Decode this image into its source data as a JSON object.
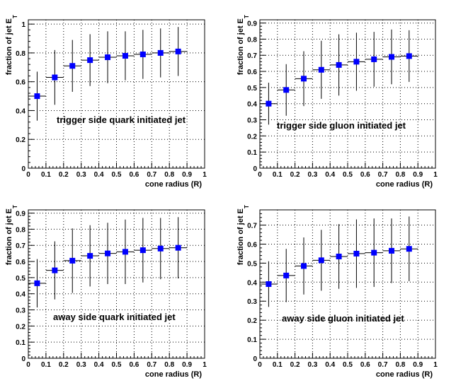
{
  "colors": {
    "marker": "#0000ff",
    "axis": "#000000",
    "grid": "#000000",
    "background": "#ffffff"
  },
  "chart_data": [
    {
      "type": "scatter",
      "annotation": "trigger side quark initiated jet",
      "xlabel": "cone radius (R)",
      "ylabel": "fraction of jet E",
      "ylabel_sub": "T",
      "xlim": [
        0,
        1
      ],
      "ylim": [
        0,
        1.03
      ],
      "xticks": [
        0,
        0.1,
        0.2,
        0.3,
        0.4,
        0.5,
        0.6,
        0.7,
        0.8,
        0.9,
        1
      ],
      "xticklabels": [
        "0",
        "0.1",
        "0.2",
        "0.3",
        "0.4",
        "0.5",
        "0.6",
        "0.7",
        "0.8",
        "0.9",
        "1"
      ],
      "yticks": [
        0,
        0.2,
        0.4,
        0.6,
        0.8,
        1
      ],
      "yticklabels": [
        "0",
        "0.2",
        "0.4",
        "0.6",
        "0.8",
        "1"
      ],
      "grid": true,
      "x": [
        0.05,
        0.15,
        0.25,
        0.35,
        0.45,
        0.55,
        0.65,
        0.75,
        0.85
      ],
      "y": [
        0.5,
        0.63,
        0.71,
        0.75,
        0.77,
        0.78,
        0.79,
        0.8,
        0.81
      ],
      "yerr": [
        0.17,
        0.19,
        0.18,
        0.18,
        0.18,
        0.17,
        0.17,
        0.17,
        0.17
      ]
    },
    {
      "type": "scatter",
      "annotation": "trigger side gluon initiated jet",
      "xlabel": "cone radius (R)",
      "ylabel": "fraction of jet E",
      "ylabel_sub": "T",
      "xlim": [
        0,
        1
      ],
      "ylim": [
        0,
        0.92
      ],
      "xticks": [
        0,
        0.1,
        0.2,
        0.3,
        0.4,
        0.5,
        0.6,
        0.7,
        0.8,
        0.9,
        1
      ],
      "xticklabels": [
        "0",
        "0.1",
        "0.2",
        "0.3",
        "0.4",
        "0.5",
        "0.6",
        "0.7",
        "0.8",
        "0.9",
        "1"
      ],
      "yticks": [
        0,
        0.1,
        0.2,
        0.3,
        0.4,
        0.5,
        0.6,
        0.7,
        0.8,
        0.9
      ],
      "yticklabels": [
        "0",
        "0.1",
        "0.2",
        "0.3",
        "0.4",
        "0.5",
        "0.6",
        "0.7",
        "0.8",
        "0.9"
      ],
      "grid": true,
      "x": [
        0.05,
        0.15,
        0.25,
        0.35,
        0.45,
        0.55,
        0.65,
        0.75,
        0.85
      ],
      "y": [
        0.4,
        0.485,
        0.555,
        0.61,
        0.64,
        0.66,
        0.675,
        0.69,
        0.695
      ],
      "yerr": [
        0.13,
        0.16,
        0.17,
        0.18,
        0.19,
        0.18,
        0.17,
        0.17,
        0.16
      ]
    },
    {
      "type": "scatter",
      "annotation": "away side quark initiated jet",
      "xlabel": "cone radius (R)",
      "ylabel": "fraction of jet E",
      "ylabel_sub": "T",
      "xlim": [
        0,
        1
      ],
      "ylim": [
        0,
        0.92
      ],
      "xticks": [
        0,
        0.1,
        0.2,
        0.3,
        0.4,
        0.5,
        0.6,
        0.7,
        0.8,
        0.9,
        1
      ],
      "xticklabels": [
        "0",
        "0.1",
        "0.2",
        "0.3",
        "0.4",
        "0.5",
        "0.6",
        "0.7",
        "0.8",
        "0.9",
        "1"
      ],
      "yticks": [
        0,
        0.1,
        0.2,
        0.3,
        0.4,
        0.5,
        0.6,
        0.7,
        0.8,
        0.9
      ],
      "yticklabels": [
        "0",
        "0.1",
        "0.2",
        "0.3",
        "0.4",
        "0.5",
        "0.6",
        "0.7",
        "0.8",
        "0.9"
      ],
      "grid": true,
      "x": [
        0.05,
        0.15,
        0.25,
        0.35,
        0.45,
        0.55,
        0.65,
        0.75,
        0.85
      ],
      "y": [
        0.465,
        0.545,
        0.605,
        0.635,
        0.65,
        0.66,
        0.67,
        0.68,
        0.685
      ],
      "yerr": [
        0.15,
        0.18,
        0.2,
        0.19,
        0.19,
        0.2,
        0.2,
        0.19,
        0.19
      ]
    },
    {
      "type": "scatter",
      "annotation": "away side gluon initiated jet",
      "xlabel": "cone radius (R)",
      "ylabel": "fraction of jet E",
      "ylabel_sub": "T",
      "xlim": [
        0,
        1
      ],
      "ylim": [
        0,
        0.78
      ],
      "xticks": [
        0,
        0.1,
        0.2,
        0.3,
        0.4,
        0.5,
        0.6,
        0.7,
        0.8,
        0.9,
        1
      ],
      "xticklabels": [
        "0",
        "0.1",
        "0.2",
        "0.3",
        "0.4",
        "0.5",
        "0.6",
        "0.7",
        "0.8",
        "0.9",
        "1"
      ],
      "yticks": [
        0,
        0.1,
        0.2,
        0.3,
        0.4,
        0.5,
        0.6,
        0.7
      ],
      "yticklabels": [
        "0",
        "0.1",
        "0.2",
        "0.3",
        "0.4",
        "0.5",
        "0.6",
        "0.7"
      ],
      "grid": true,
      "x": [
        0.05,
        0.15,
        0.25,
        0.35,
        0.45,
        0.55,
        0.65,
        0.75,
        0.85
      ],
      "y": [
        0.39,
        0.435,
        0.485,
        0.515,
        0.535,
        0.55,
        0.555,
        0.565,
        0.575
      ],
      "yerr": [
        0.12,
        0.14,
        0.15,
        0.16,
        0.17,
        0.18,
        0.18,
        0.17,
        0.17
      ]
    }
  ]
}
